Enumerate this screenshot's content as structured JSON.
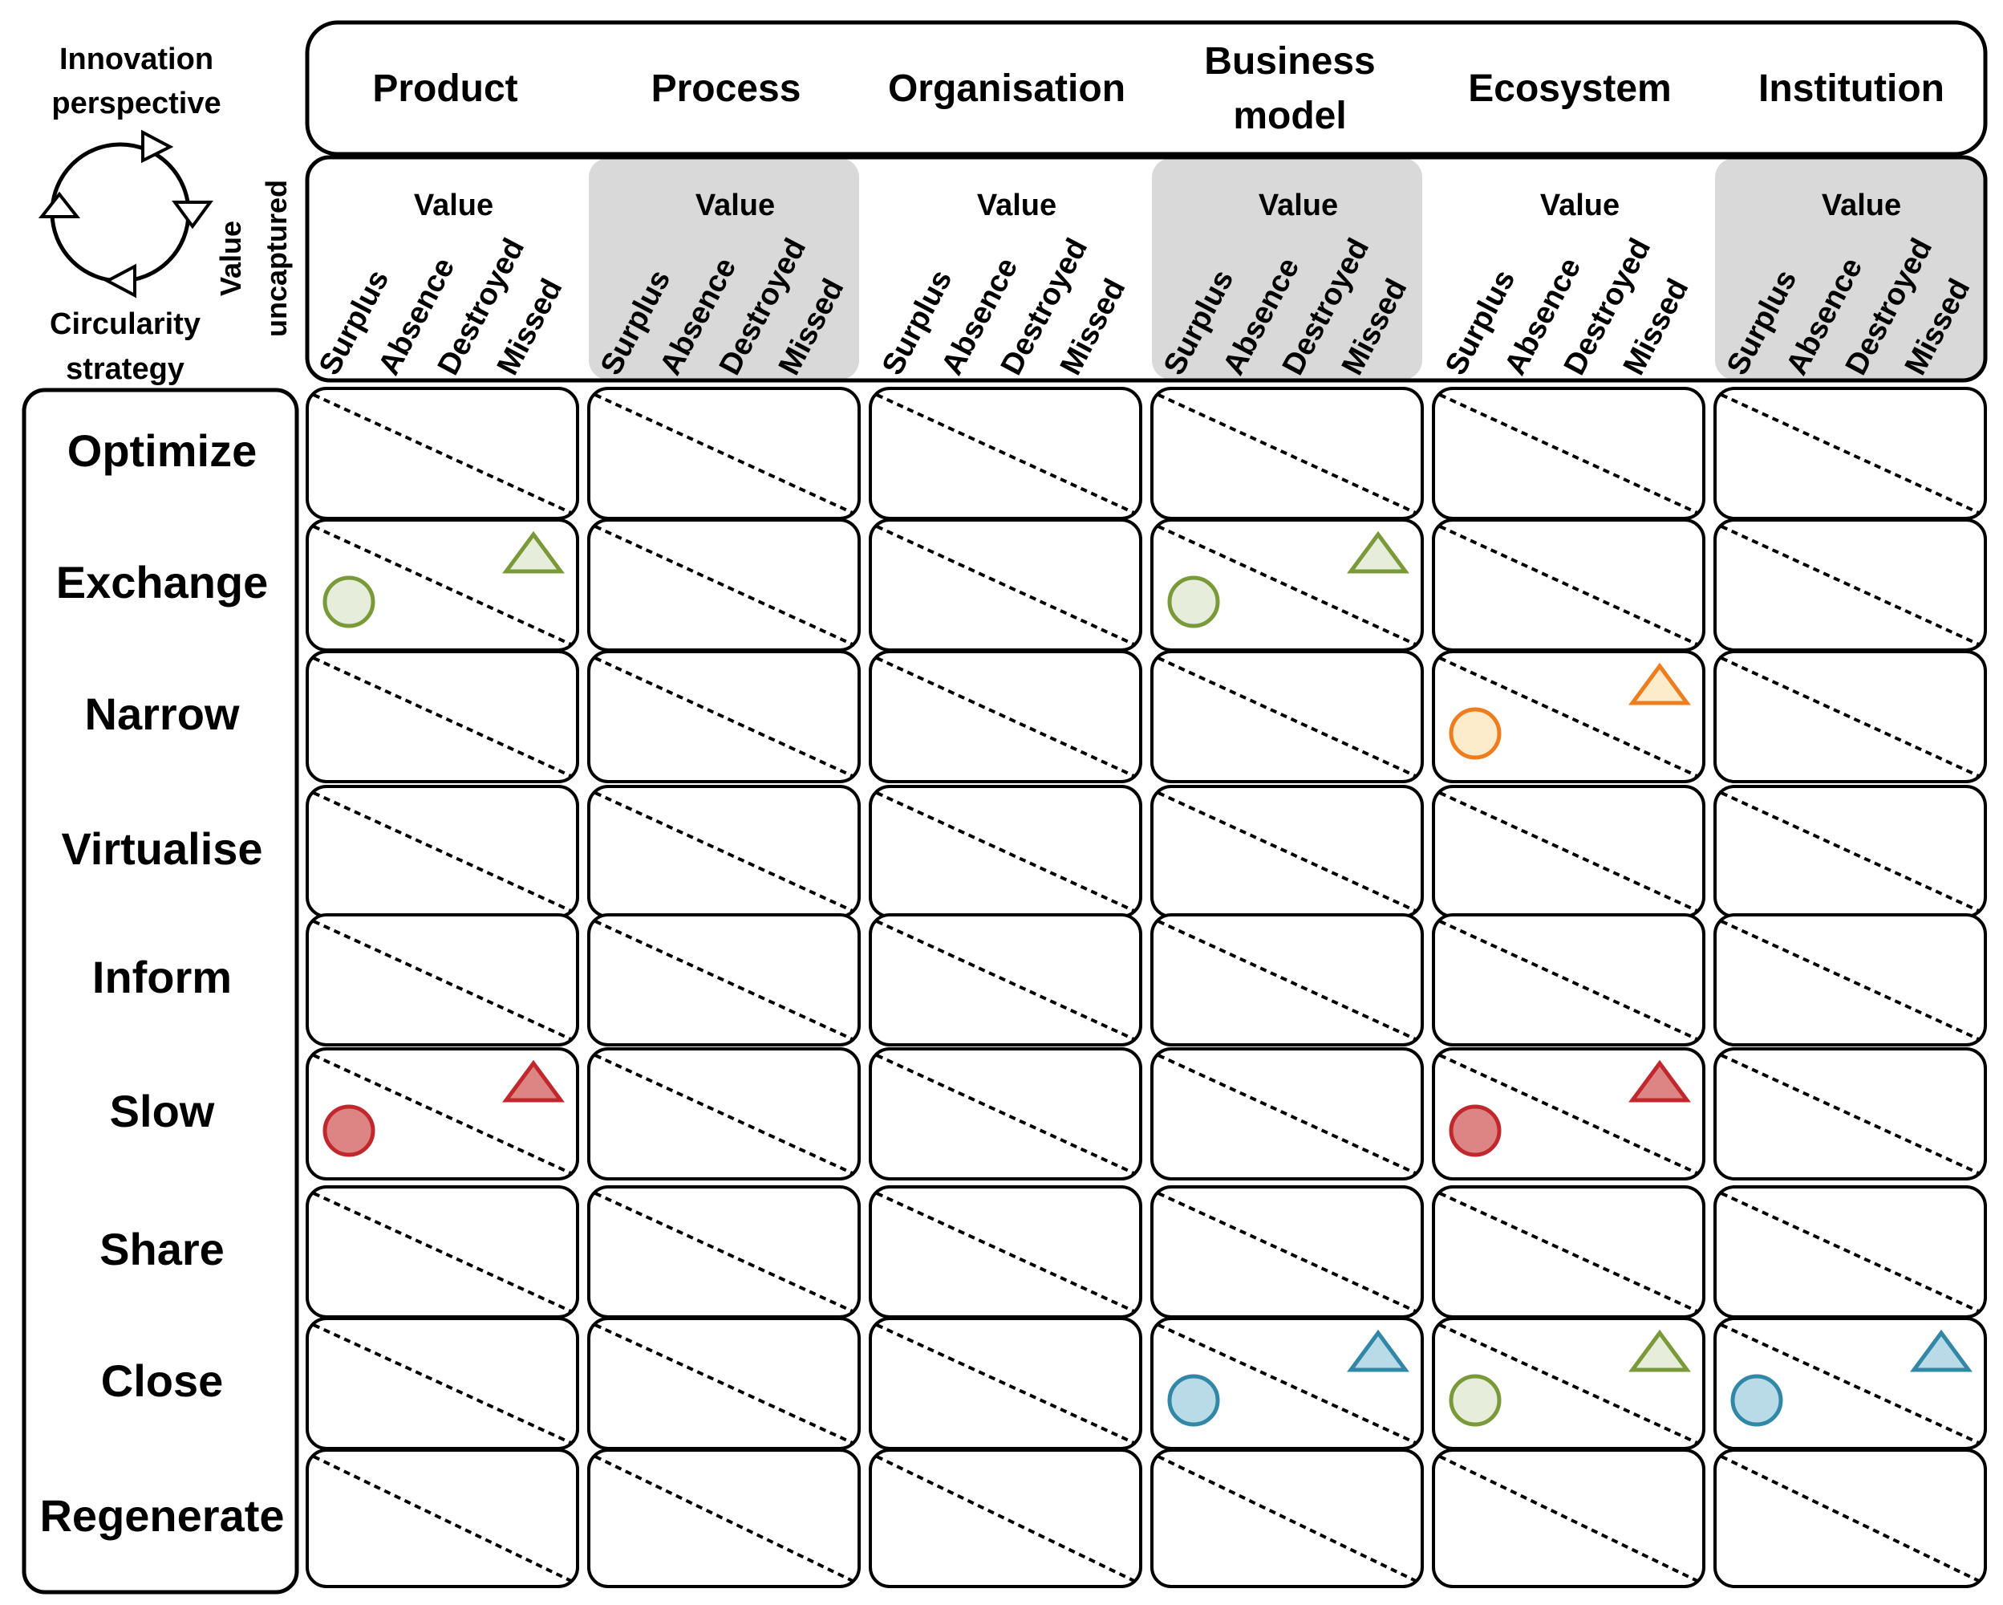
{
  "legend": {
    "innovation_label_line1": "Innovation",
    "innovation_label_line2": "perspective",
    "circularity_label_line1": "Circularity",
    "circularity_label_line2": "strategy",
    "value_uncaptured_line1": "Value",
    "value_uncaptured_line2": "uncaptured"
  },
  "perspectives": [
    {
      "label_lines": [
        "Product"
      ]
    },
    {
      "label_lines": [
        "Process"
      ]
    },
    {
      "label_lines": [
        "Organisation"
      ]
    },
    {
      "label_lines": [
        "Business",
        "model"
      ]
    },
    {
      "label_lines": [
        "Ecosystem"
      ]
    },
    {
      "label_lines": [
        "Institution"
      ]
    }
  ],
  "value_header": "Value",
  "value_types": [
    "Surplus",
    "Absence",
    "Destroyed",
    "Missed"
  ],
  "strategies": [
    "Optimize",
    "Exchange",
    "Narrow",
    "Virtualise",
    "Inform",
    "Slow",
    "Share",
    "Close",
    "Regenerate"
  ],
  "colors": {
    "green": {
      "stroke": "#7a9a3a",
      "fill": "#e6eedb"
    },
    "orange": {
      "stroke": "#ed7d1f",
      "fill": "#fdeccb"
    },
    "red": {
      "stroke": "#c0282d",
      "fill": "#dd8585"
    },
    "blue": {
      "stroke": "#3188a6",
      "fill": "#b9dbe8"
    },
    "shaded_header": "#d9d9d9"
  },
  "markers": [
    {
      "strategy": "Exchange",
      "perspective": "Product",
      "color": "green",
      "shapes": [
        "circle",
        "triangle"
      ]
    },
    {
      "strategy": "Exchange",
      "perspective": "Business model",
      "color": "green",
      "shapes": [
        "circle",
        "triangle"
      ]
    },
    {
      "strategy": "Narrow",
      "perspective": "Ecosystem",
      "color": "orange",
      "shapes": [
        "circle",
        "triangle"
      ]
    },
    {
      "strategy": "Slow",
      "perspective": "Product",
      "color": "red",
      "shapes": [
        "circle",
        "triangle"
      ]
    },
    {
      "strategy": "Slow",
      "perspective": "Ecosystem",
      "color": "red",
      "shapes": [
        "circle",
        "triangle"
      ]
    },
    {
      "strategy": "Close",
      "perspective": "Business model",
      "color": "blue",
      "shapes": [
        "circle",
        "triangle"
      ]
    },
    {
      "strategy": "Close",
      "perspective": "Ecosystem",
      "color": "green",
      "shapes": [
        "circle",
        "triangle"
      ]
    },
    {
      "strategy": "Close",
      "perspective": "Institution",
      "color": "blue",
      "shapes": [
        "circle",
        "triangle"
      ]
    }
  ]
}
